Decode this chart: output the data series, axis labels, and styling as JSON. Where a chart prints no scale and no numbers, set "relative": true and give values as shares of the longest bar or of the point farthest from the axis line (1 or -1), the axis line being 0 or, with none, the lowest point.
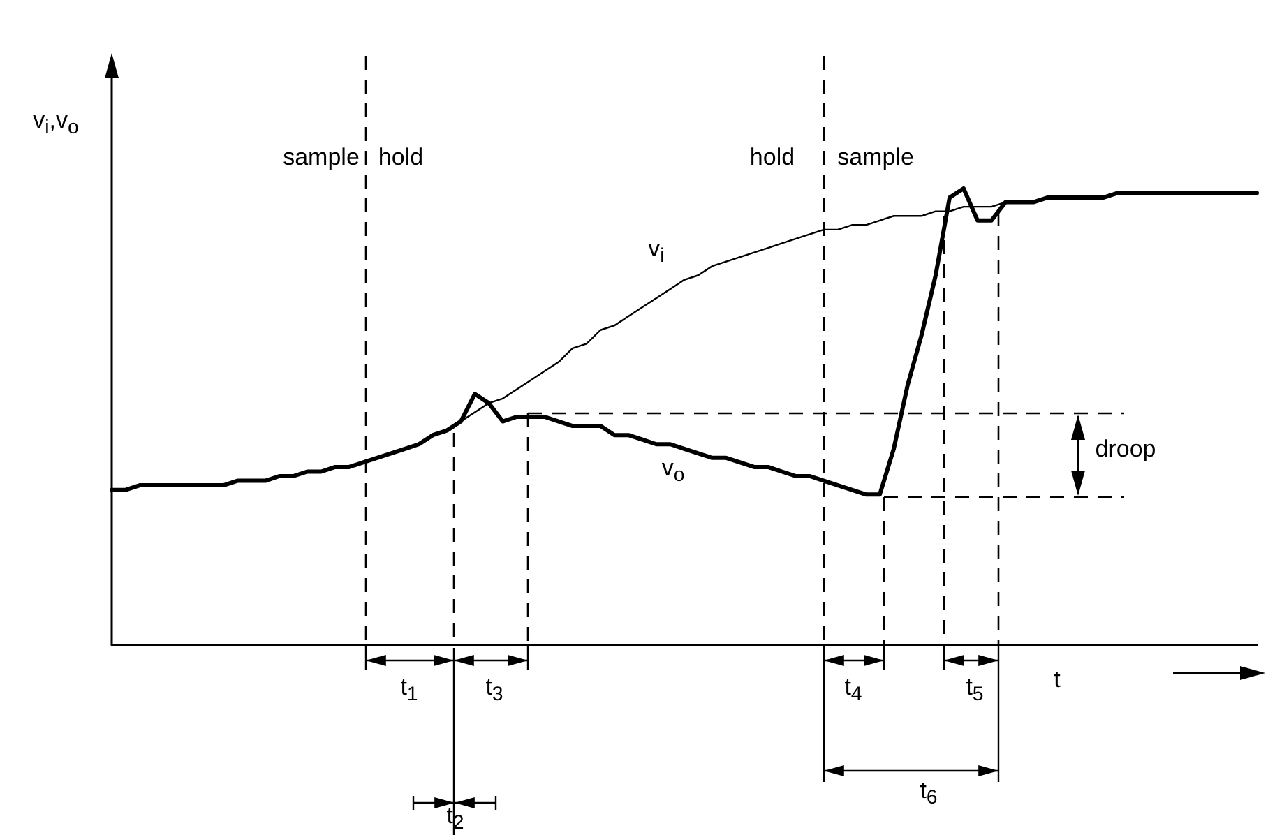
{
  "chart_data": {
    "type": "line",
    "relative": true,
    "xlabel": "t",
    "ylabel": "v$_{i}$,v$_{o}$",
    "categories": [
      null,
      null,
      null,
      null,
      null,
      null,
      null,
      null,
      null,
      null,
      null,
      null,
      null,
      null,
      null,
      null,
      null,
      null,
      null,
      null,
      null,
      null,
      null,
      null,
      null,
      null,
      null,
      null,
      null,
      null,
      null,
      null,
      null,
      null,
      null,
      null,
      null,
      null,
      null,
      null,
      null,
      null,
      null,
      null,
      null,
      null,
      null,
      null,
      null,
      null,
      null,
      null,
      null,
      null,
      null,
      null,
      null,
      null,
      null,
      null,
      null,
      null,
      null,
      null,
      null,
      null,
      null,
      null,
      null,
      null,
      null,
      null,
      null,
      null,
      null,
      null,
      null,
      null,
      null,
      null,
      null,
      null,
      null
    ],
    "series": [
      {
        "name": "v$_{i}$",
        "color": "#000000",
        "values": [
          0.34,
          0.34,
          0.35,
          0.35,
          0.35,
          0.35,
          0.35,
          0.35,
          0.35,
          0.36,
          0.36,
          0.36,
          0.37,
          0.37,
          0.38,
          0.38,
          0.39,
          0.39,
          0.4,
          0.41,
          0.42,
          0.43,
          0.44,
          0.46,
          0.47,
          0.49,
          0.51,
          0.53,
          0.54,
          0.56,
          0.58,
          0.6,
          0.62,
          0.65,
          0.66,
          0.69,
          0.7,
          0.72,
          0.74,
          0.76,
          0.78,
          0.8,
          0.81,
          0.83,
          0.84,
          0.85,
          0.86,
          0.87,
          0.88,
          0.89,
          0.9,
          0.91,
          0.91,
          0.92,
          0.92,
          0.93,
          0.94,
          0.94,
          0.94,
          0.95,
          0.95,
          0.96,
          0.96,
          0.96,
          0.97,
          0.97,
          0.97,
          0.98,
          0.98,
          0.98,
          0.98,
          0.98,
          0.99,
          0.99,
          0.99,
          0.99,
          0.99,
          0.99,
          0.99,
          0.99,
          0.99,
          0.99,
          0.99
        ]
      },
      {
        "name": "v$_{o}$",
        "color": "#000000",
        "values": [
          0.34,
          0.34,
          0.35,
          0.35,
          0.35,
          0.35,
          0.35,
          0.35,
          0.35,
          0.36,
          0.36,
          0.36,
          0.37,
          0.37,
          0.38,
          0.38,
          0.39,
          0.39,
          0.4,
          0.41,
          0.42,
          0.43,
          0.44,
          0.46,
          0.47,
          0.49,
          0.55,
          0.53,
          0.49,
          0.5,
          0.5,
          0.5,
          0.49,
          0.48,
          0.48,
          0.48,
          0.46,
          0.46,
          0.45,
          0.44,
          0.44,
          0.43,
          0.42,
          0.41,
          0.41,
          0.4,
          0.39,
          0.39,
          0.38,
          0.37,
          0.37,
          0.36,
          0.35,
          0.34,
          0.33,
          0.33,
          0.43,
          0.57,
          0.68,
          0.81,
          0.98,
          1.0,
          0.93,
          0.93,
          0.97,
          0.97,
          0.97,
          0.98,
          0.98,
          0.98,
          0.98,
          0.98,
          0.99,
          0.99,
          0.99,
          0.99,
          0.99,
          0.99,
          0.99,
          0.99,
          0.99,
          0.99,
          0.99
        ]
      }
    ],
    "annotations": [
      "sample",
      "hold",
      "hold",
      "sample",
      "droop",
      "t$_{1}$",
      "t$_{2}$",
      "t$_{3}$",
      "t$_{4}$",
      "t$_{5}$",
      "t$_{6}$"
    ]
  }
}
